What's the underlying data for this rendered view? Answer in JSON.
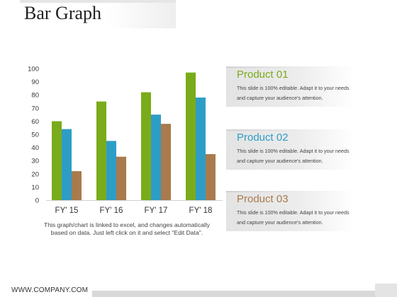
{
  "title": "Bar Graph",
  "footer": {
    "url": "WWW.COMPANY.COM"
  },
  "note": "This graph/chart is linked to excel, and changes automatically based on data. Just left click on it and select \"Edit Data\".",
  "colors": {
    "series_1": "#7aab1a",
    "series_2": "#2e9dc6",
    "series_3": "#a97a4c"
  },
  "products": [
    {
      "title": "Product 01",
      "color": "#7aab1a",
      "desc": "This slide is 100% editable. Adapt it to your needs and capture your audience's attention."
    },
    {
      "title": "Product 02",
      "color": "#2e9dc6",
      "desc": "This slide is 100% editable. Adapt it to your needs and capture your audience's attention."
    },
    {
      "title": "Product 03",
      "color": "#a97a4c",
      "desc": "This slide is 100% editable. Adapt it to your needs and capture your audience's attention."
    }
  ],
  "chart_data": {
    "type": "bar",
    "categories": [
      "FY' 15",
      "FY' 16",
      "FY' 17",
      "FY' 18"
    ],
    "series": [
      {
        "values": [
          60,
          75,
          82,
          97
        ]
      },
      {
        "values": [
          54,
          45,
          65,
          78
        ]
      },
      {
        "values": [
          22,
          33,
          58,
          35
        ]
      }
    ],
    "ylim": [
      0,
      100
    ],
    "yticks": [
      0,
      10,
      20,
      30,
      40,
      50,
      60,
      70,
      80,
      90,
      100
    ],
    "grid": false,
    "title": "",
    "xlabel": "",
    "ylabel": ""
  }
}
